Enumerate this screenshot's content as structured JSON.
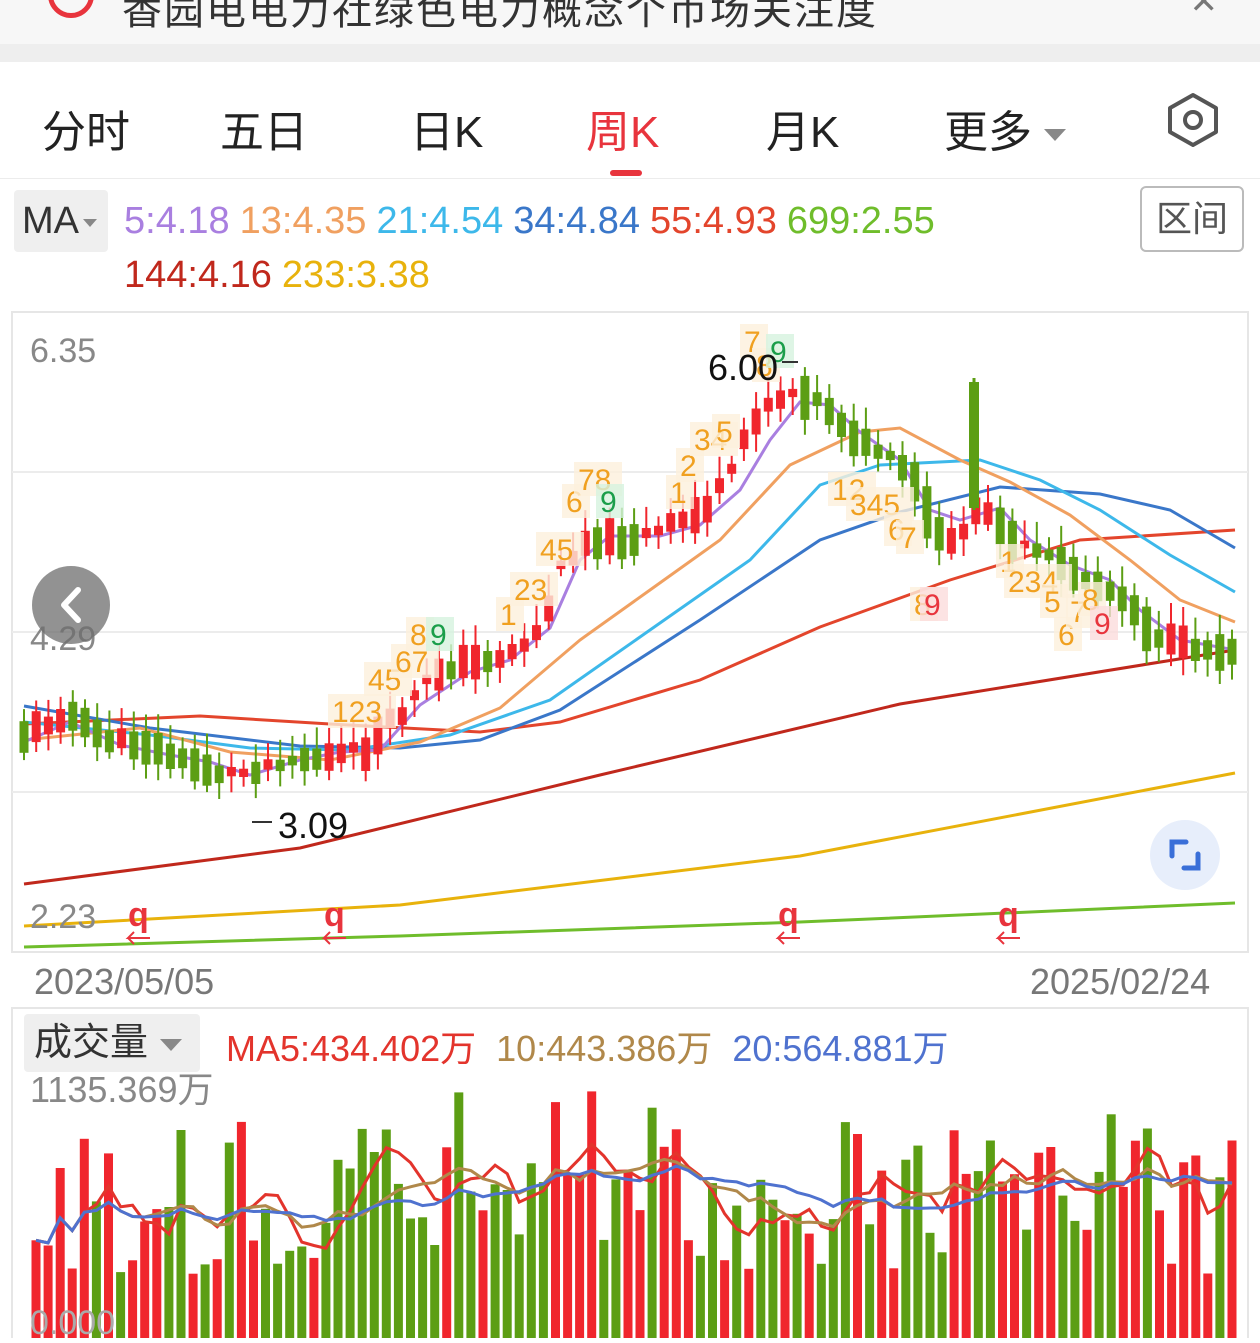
{
  "header": {
    "title": "香园电电力社绿色电力概念个币场关注度",
    "close_glyph": "✕"
  },
  "tabs": [
    {
      "label": "分时"
    },
    {
      "label": "五日"
    },
    {
      "label": "日K"
    },
    {
      "label": "周K"
    },
    {
      "label": "月K"
    },
    {
      "label": "更多"
    }
  ],
  "active_tab": "周K",
  "ma_selector_label": "MA",
  "range_button_label": "区间",
  "ma_legend": [
    {
      "label": "5:4.18",
      "color": "#a97fe0"
    },
    {
      "label": "13:4.35",
      "color": "#f0a060"
    },
    {
      "label": "21:4.54",
      "color": "#3db8ea"
    },
    {
      "label": "34:4.84",
      "color": "#3a77c9"
    },
    {
      "label": "55:4.93",
      "color": "#e3452c"
    },
    {
      "label": "699:2.55",
      "color": "#6fbd2b"
    },
    {
      "label": "144:4.16",
      "color": "#c0281c"
    },
    {
      "label": "233:3.38",
      "color": "#e8b20c"
    }
  ],
  "price_axis": {
    "max_label": "6.35",
    "mid_label": "4.29",
    "min_label": "2.23"
  },
  "price_annotations": {
    "high_label": "6.00",
    "low_label": "3.09"
  },
  "date_axis": {
    "start": "2023/05/05",
    "end": "2025/02/24"
  },
  "volume": {
    "selector_label": "成交量",
    "legend": [
      {
        "label": "MA5:434.402万",
        "color": "#e3342c"
      },
      {
        "label": "10:443.386万",
        "color": "#b0884a"
      },
      {
        "label": "20:564.881万",
        "color": "#4f72cf"
      }
    ],
    "max_label": "1135.369万",
    "min_label": "0.000"
  },
  "colors": {
    "up": "#f0262d",
    "down": "#5c9e14",
    "accent": "#e8343d"
  },
  "icons": {
    "back": "chevron-left-icon",
    "expand": "expand-icon",
    "settings": "hexagon-gear-icon"
  }
}
